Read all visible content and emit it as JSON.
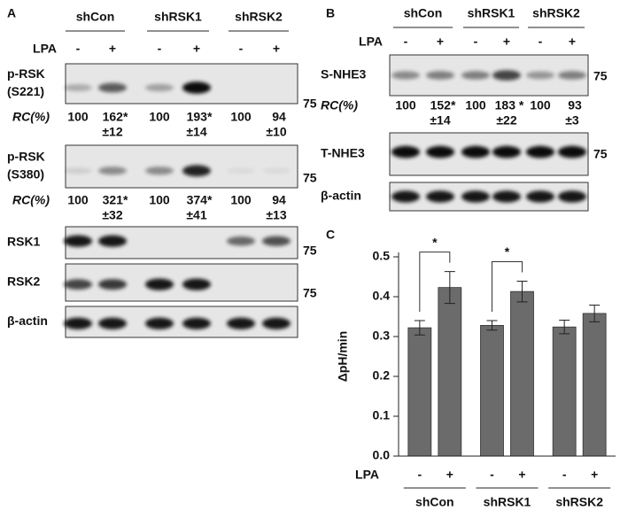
{
  "panel_a": {
    "label": "A",
    "groups": [
      "shCon",
      "shRSK1",
      "shRSK2"
    ],
    "lpa_label": "LPA",
    "lpa": [
      "-",
      "+",
      "-",
      "+",
      "-",
      "+"
    ],
    "blots": [
      {
        "label": [
          "p-RSK",
          "(S221)"
        ],
        "marker": "75"
      },
      {
        "label": [
          "p-RSK",
          "(S380)"
        ],
        "marker": "75"
      },
      {
        "label": [
          "RSK1"
        ],
        "marker": "75"
      },
      {
        "label": [
          "RSK2"
        ],
        "marker": "75"
      },
      {
        "label": [
          "β-actin"
        ]
      }
    ],
    "rc": [
      {
        "label": "RC(%)",
        "entries": [
          {
            "text": "100"
          },
          {
            "text": "162*",
            "sd": "±12"
          },
          {
            "text": "100"
          },
          {
            "text": "193*",
            "sd": "±14"
          },
          {
            "text": "100"
          },
          {
            "text": "94",
            "sd": "±10"
          }
        ]
      },
      {
        "label": "RC(%)",
        "entries": [
          {
            "text": "100"
          },
          {
            "text": "321*",
            "sd": "±32"
          },
          {
            "text": "100"
          },
          {
            "text": "374*",
            "sd": "±41"
          },
          {
            "text": "100"
          },
          {
            "text": "94",
            "sd": "±13"
          }
        ]
      }
    ]
  },
  "panel_b": {
    "label": "B",
    "groups": [
      "shCon",
      "shRSK1",
      "shRSK2"
    ],
    "lpa_label": "LPA",
    "lpa": [
      "-",
      "+",
      "-",
      "+",
      "-",
      "+"
    ],
    "blots": [
      {
        "label": [
          "S-NHE3"
        ],
        "marker": "75"
      },
      {
        "label": [
          "T-NHE3"
        ],
        "marker": "75"
      },
      {
        "label": [
          "β-actin"
        ]
      }
    ],
    "rc": [
      {
        "label": "RC(%)",
        "entries": [
          {
            "text": "100"
          },
          {
            "text": "152*",
            "sd": "±14"
          },
          {
            "text": "100"
          },
          {
            "text": "183 *",
            "sd": "±22"
          },
          {
            "text": "100"
          },
          {
            "text": "93",
            "sd": "±3"
          }
        ]
      }
    ]
  },
  "chart_data": {
    "type": "bar",
    "panel_label": "C",
    "y_label": "ΔpH/min",
    "x_label": "LPA",
    "categories": [
      "-",
      "+",
      "-",
      "+",
      "-",
      "+"
    ],
    "groups": [
      "shCon",
      "shRSK1",
      "shRSK2"
    ],
    "values": [
      0.322,
      0.423,
      0.328,
      0.413,
      0.324,
      0.358
    ],
    "errors": [
      0.018,
      0.04,
      0.012,
      0.026,
      0.017,
      0.021
    ],
    "color": "#6b6b6b",
    "ylim": [
      0,
      0.5
    ],
    "yticks": [
      {
        "value": 0,
        "label": "0.0"
      },
      0.1,
      0.2,
      0.3,
      0.4,
      0.5
    ],
    "significance": [
      {
        "label": "*",
        "between": [
          0,
          1
        ]
      },
      {
        "label": "*",
        "between": [
          2,
          3
        ]
      }
    ]
  }
}
